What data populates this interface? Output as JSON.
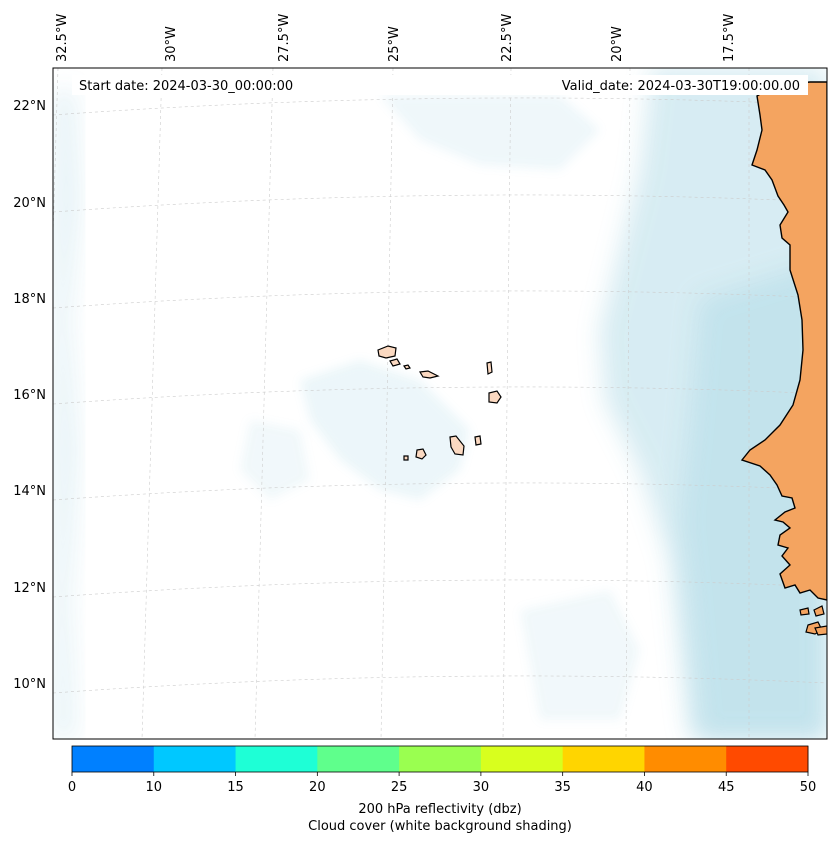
{
  "header": {
    "start_date": "Start date: 2024-03-30_00:00:00",
    "valid_date": "Valid_date: 2024-03-30T19:00:00.00"
  },
  "map": {
    "lon_ticks": [
      "32.5°W",
      "30°W",
      "27.5°W",
      "25°W",
      "22.5°W",
      "20°W",
      "17.5°W"
    ],
    "lat_ticks": [
      "22°N",
      "20°N",
      "18°N",
      "16°N",
      "14°N",
      "12°N",
      "10°N"
    ],
    "colors": {
      "land_mainland": "#f4a460",
      "land_islands": "#fbd9c1",
      "cloud": "#add8e6",
      "coastline": "#000000",
      "grid": "#cccccc"
    }
  },
  "colorbar": {
    "ticks": [
      "0",
      "10",
      "15",
      "20",
      "25",
      "30",
      "35",
      "40",
      "45",
      "50"
    ],
    "colors": [
      "#0080ff",
      "#00c8ff",
      "#1effd6",
      "#5fff8c",
      "#9aff50",
      "#d8ff1e",
      "#ffd500",
      "#ff8c00",
      "#ff4a00"
    ],
    "label_line1": "200 hPa reflectivity (dbz)",
    "label_line2": "Cloud cover (white background shading)"
  }
}
